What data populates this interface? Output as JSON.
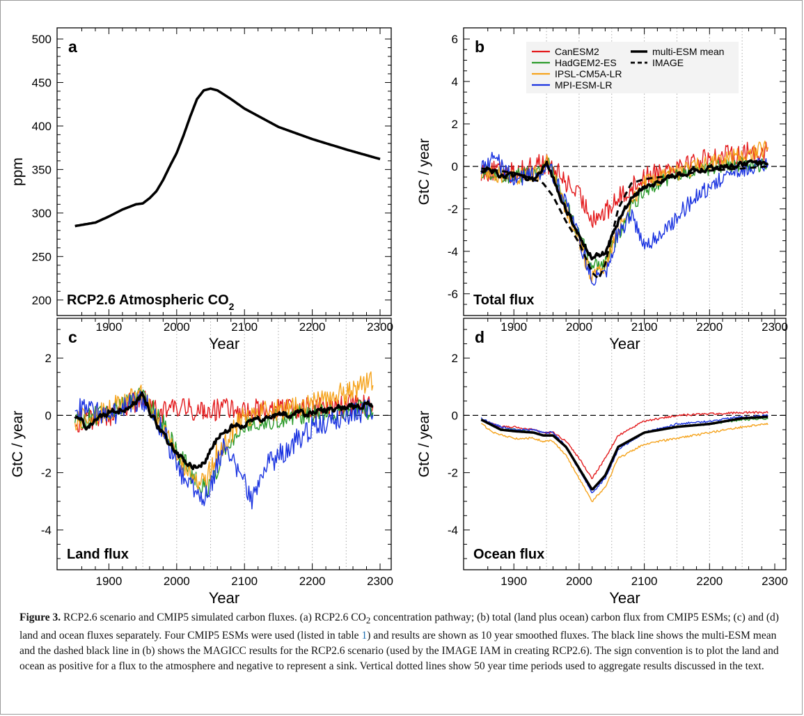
{
  "colors": {
    "CanESM2": "#e31a1c",
    "HadGEM2-ES": "#2a9a2a",
    "IPSL-CM5A-LR": "#f5a31c",
    "MPI-ESM-LR": "#1a33e0",
    "mean": "#000000",
    "vgrid": "#aaaaaa"
  },
  "legend": {
    "entries": [
      "CanESM2",
      "HadGEM2-ES",
      "IPSL-CM5A-LR",
      "MPI-ESM-LR"
    ],
    "mean_label": "multi-ESM mean",
    "image_label": "IMAGE"
  },
  "caption": {
    "label": "Figure 3.",
    "t1": " RCP2.6 scenario and CMIP5 simulated carbon fluxes. (a) RCP2.6 CO",
    "sub": "2",
    "t2": " concentration pathway; (b) total (land plus ocean) carbon flux from CMIP5 ESMs; (c) and (d) land and ocean fluxes separately. Four CMIP5 ESMs were used (listed in table ",
    "table_ref": "1",
    "t3": ") and results are shown as 10 year smoothed fluxes. The black line shows the multi-ESM mean and the dashed black line in (b) shows the MAGICC results for the RCP2.6 scenario (used by the IMAGE IAM in creating RCP2.6). The sign convention is to plot the land and ocean as positive for a flux to the atmosphere and negative to represent a sink. Vertical dotted lines show 50 year time periods used to aggregate results discussed in the text."
  },
  "chart_data": [
    {
      "panel": "a",
      "type": "line",
      "title": "RCP2.6 Atmospheric CO₂",
      "xlabel": "Year",
      "ylabel": "ppm",
      "xlim": [
        1840,
        2300
      ],
      "ylim": [
        195,
        500
      ],
      "xticks": [
        1900,
        2000,
        2100,
        2200,
        2300
      ],
      "yticks": [
        200,
        250,
        300,
        350,
        400,
        450,
        500
      ],
      "grid": false,
      "series": [
        {
          "name": "RCP2.6 CO₂",
          "style": "mean",
          "x": [
            1850,
            1880,
            1900,
            1920,
            1940,
            1950,
            1960,
            1970,
            1980,
            1990,
            2000,
            2010,
            2020,
            2030,
            2040,
            2050,
            2060,
            2080,
            2100,
            2150,
            2200,
            2250,
            2300
          ],
          "y": [
            285,
            289,
            296,
            304,
            310,
            311,
            317,
            325,
            338,
            354,
            369,
            389,
            411,
            431,
            441,
            443,
            441,
            431,
            420,
            399,
            385,
            373,
            362
          ]
        }
      ]
    },
    {
      "panel": "b",
      "type": "line",
      "title": "Total flux",
      "xlabel": "Year",
      "ylabel": "GtC / year",
      "xlim": [
        1840,
        2300
      ],
      "ylim": [
        -6.5,
        6
      ],
      "xticks": [
        1900,
        2000,
        2100,
        2200,
        2300
      ],
      "yticks": [
        -6,
        -4,
        -2,
        0,
        2,
        4,
        6
      ],
      "vgrid": [
        1950,
        2000,
        2050,
        2100,
        2150,
        2200,
        2250
      ],
      "zero_line": true,
      "legend": "top",
      "series": [
        {
          "name": "CanESM2",
          "noise": 0.55,
          "x": [
            1850,
            1900,
            1940,
            1950,
            1970,
            2000,
            2020,
            2040,
            2060,
            2100,
            2150,
            2200,
            2250,
            2290
          ],
          "y": [
            -0.2,
            -0.3,
            0.2,
            0.1,
            -0.4,
            -1.4,
            -2.4,
            -2.2,
            -1.5,
            -0.5,
            0.1,
            0.4,
            0.6,
            0.8
          ]
        },
        {
          "name": "HadGEM2-ES",
          "noise": 0.4,
          "x": [
            1850,
            1900,
            1940,
            1950,
            1970,
            2000,
            2020,
            2040,
            2060,
            2080,
            2100,
            2150,
            2200,
            2250,
            2290
          ],
          "y": [
            -0.2,
            -0.5,
            -0.2,
            0.3,
            -1.0,
            -3.3,
            -4.6,
            -4.5,
            -3.2,
            -2.0,
            -1.1,
            -0.4,
            -0.1,
            0.1,
            0.1
          ]
        },
        {
          "name": "IPSL-CM5A-LR",
          "noise": 0.45,
          "x": [
            1850,
            1900,
            1940,
            1950,
            1970,
            2000,
            2020,
            2040,
            2060,
            2080,
            2100,
            2150,
            2200,
            2250,
            2290
          ],
          "y": [
            -0.2,
            -0.5,
            -0.3,
            0.2,
            -1.2,
            -3.6,
            -5.2,
            -4.7,
            -3.0,
            -1.6,
            -0.8,
            -0.3,
            0.2,
            0.5,
            0.9
          ]
        },
        {
          "name": "MPI-ESM-LR",
          "noise": 0.45,
          "x": [
            1850,
            1870,
            1900,
            1940,
            1950,
            1970,
            2000,
            2020,
            2040,
            2060,
            2080,
            2100,
            2130,
            2160,
            2200,
            2250,
            2290
          ],
          "y": [
            0.0,
            0.4,
            -0.6,
            -0.3,
            0.2,
            -1.0,
            -3.4,
            -5.3,
            -5.0,
            -3.1,
            -2.3,
            -3.8,
            -3.1,
            -2.0,
            -0.9,
            -0.2,
            0.1
          ]
        },
        {
          "name": "multi-ESM mean",
          "style": "mean",
          "noise": 0.22,
          "x": [
            1850,
            1880,
            1900,
            1930,
            1950,
            1970,
            2000,
            2020,
            2040,
            2060,
            2080,
            2100,
            2150,
            2200,
            2250,
            2290
          ],
          "y": [
            -0.1,
            -0.4,
            -0.5,
            -0.6,
            0.2,
            -1.3,
            -3.3,
            -4.3,
            -4.1,
            -2.6,
            -1.5,
            -1.0,
            -0.4,
            -0.1,
            0.1,
            0.2
          ]
        },
        {
          "name": "IMAGE",
          "style": "dashed",
          "x": [
            1850,
            1900,
            1930,
            1945,
            1960,
            1980,
            2000,
            2020,
            2030,
            2040,
            2060,
            2080,
            2100,
            2150,
            2200,
            2250,
            2290
          ],
          "y": [
            -0.1,
            -0.3,
            -0.6,
            -0.8,
            -1.4,
            -2.6,
            -3.6,
            -5.0,
            -5.3,
            -4.6,
            -2.0,
            -0.8,
            -0.6,
            -0.4,
            -0.2,
            -0.1,
            0.0
          ]
        }
      ]
    },
    {
      "panel": "c",
      "type": "line",
      "title": "Land flux",
      "xlabel": "Year",
      "ylabel": "GtC / year",
      "xlim": [
        1840,
        2300
      ],
      "ylim": [
        -5,
        3
      ],
      "xticks": [
        1900,
        2000,
        2100,
        2200,
        2300
      ],
      "yticks": [
        -4,
        -2,
        0,
        2
      ],
      "vgrid": [
        1950,
        2000,
        2050,
        2100,
        2150,
        2200,
        2250
      ],
      "zero_line": true,
      "series": [
        {
          "name": "CanESM2",
          "noise": 0.45,
          "x": [
            1850,
            1900,
            1940,
            1950,
            1970,
            2000,
            2040,
            2100,
            2150,
            2200,
            2250,
            2290
          ],
          "y": [
            -0.3,
            0.0,
            0.5,
            0.6,
            0.1,
            0.2,
            0.2,
            0.2,
            0.2,
            0.3,
            0.3,
            0.4
          ]
        },
        {
          "name": "HadGEM2-ES",
          "noise": 0.4,
          "x": [
            1850,
            1900,
            1950,
            1980,
            2000,
            2030,
            2045,
            2060,
            2080,
            2100,
            2150,
            2200,
            2250,
            2290
          ],
          "y": [
            -0.2,
            0.1,
            0.7,
            -0.3,
            -1.2,
            -2.4,
            -2.6,
            -1.8,
            -0.8,
            -0.3,
            -0.1,
            0.1,
            0.2,
            0.2
          ]
        },
        {
          "name": "IPSL-CM5A-LR",
          "noise": 0.45,
          "x": [
            1850,
            1900,
            1950,
            1980,
            2000,
            2030,
            2045,
            2060,
            2080,
            2100,
            2150,
            2200,
            2250,
            2290
          ],
          "y": [
            -0.2,
            0.2,
            0.7,
            -0.5,
            -1.5,
            -2.3,
            -2.2,
            -1.3,
            -0.6,
            0.0,
            0.2,
            0.4,
            0.8,
            1.2
          ]
        },
        {
          "name": "MPI-ESM-LR",
          "noise": 0.45,
          "x": [
            1850,
            1880,
            1900,
            1950,
            1980,
            2000,
            2020,
            2040,
            2050,
            2070,
            2090,
            2110,
            2130,
            2160,
            2200,
            2250,
            2290
          ],
          "y": [
            0.2,
            0.2,
            -0.1,
            0.6,
            -0.5,
            -1.8,
            -2.4,
            -3.0,
            -2.5,
            -1.0,
            -1.8,
            -3.0,
            -1.8,
            -1.2,
            -0.4,
            0.0,
            0.2
          ]
        },
        {
          "name": "multi-ESM mean",
          "style": "mean",
          "noise": 0.2,
          "x": [
            1850,
            1870,
            1900,
            1930,
            1950,
            1970,
            1990,
            2010,
            2030,
            2045,
            2060,
            2080,
            2100,
            2150,
            2200,
            2250,
            2290
          ],
          "y": [
            -0.1,
            -0.4,
            0.1,
            0.3,
            0.7,
            -0.3,
            -1.0,
            -1.6,
            -1.8,
            -1.5,
            -0.8,
            -0.4,
            -0.3,
            0.0,
            0.1,
            0.3,
            0.4
          ]
        }
      ]
    },
    {
      "panel": "d",
      "type": "line",
      "title": "Ocean flux",
      "xlabel": "Year",
      "ylabel": "GtC / year",
      "xlim": [
        1840,
        2300
      ],
      "ylim": [
        -5,
        3
      ],
      "xticks": [
        1900,
        2000,
        2100,
        2200,
        2300
      ],
      "yticks": [
        -4,
        -2,
        0,
        2
      ],
      "vgrid": [
        1950,
        2000,
        2050,
        2100,
        2150,
        2200,
        2250
      ],
      "zero_line": true,
      "series": [
        {
          "name": "CanESM2",
          "noise": 0.04,
          "x": [
            1850,
            1880,
            1900,
            1930,
            1945,
            1960,
            1980,
            2000,
            2020,
            2040,
            2060,
            2100,
            2150,
            2200,
            2250,
            2290
          ],
          "y": [
            -0.15,
            -0.4,
            -0.4,
            -0.5,
            -0.6,
            -0.6,
            -0.9,
            -1.5,
            -2.2,
            -1.5,
            -0.7,
            -0.2,
            0.0,
            0.05,
            0.1,
            0.1
          ]
        },
        {
          "name": "HadGEM2-ES",
          "noise": 0.04,
          "x": [
            1850,
            1880,
            1900,
            1930,
            1945,
            1960,
            1980,
            2000,
            2020,
            2040,
            2060,
            2100,
            2150,
            2200,
            2250,
            2290
          ],
          "y": [
            -0.15,
            -0.5,
            -0.5,
            -0.6,
            -0.7,
            -0.7,
            -1.1,
            -1.8,
            -2.6,
            -2.1,
            -1.1,
            -0.6,
            -0.4,
            -0.3,
            -0.15,
            -0.1
          ]
        },
        {
          "name": "IPSL-CM5A-LR",
          "noise": 0.04,
          "x": [
            1850,
            1870,
            1900,
            1930,
            1945,
            1960,
            1980,
            2000,
            2020,
            2040,
            2060,
            2100,
            2150,
            2200,
            2250,
            2290
          ],
          "y": [
            -0.3,
            -0.6,
            -0.8,
            -0.8,
            -0.9,
            -0.9,
            -1.4,
            -2.2,
            -3.0,
            -2.5,
            -1.5,
            -1.0,
            -0.8,
            -0.6,
            -0.4,
            -0.3
          ]
        },
        {
          "name": "MPI-ESM-LR",
          "noise": 0.04,
          "x": [
            1850,
            1880,
            1900,
            1930,
            1945,
            1960,
            1980,
            2000,
            2020,
            2040,
            2060,
            2100,
            2150,
            2200,
            2250,
            2290
          ],
          "y": [
            -0.1,
            -0.4,
            -0.5,
            -0.5,
            -0.6,
            -0.6,
            -1.1,
            -1.9,
            -2.7,
            -2.2,
            -1.2,
            -0.6,
            -0.3,
            -0.2,
            -0.05,
            0.0
          ]
        },
        {
          "name": "multi-ESM mean",
          "style": "mean",
          "noise": 0.0,
          "x": [
            1850,
            1880,
            1900,
            1930,
            1945,
            1960,
            1980,
            2000,
            2020,
            2040,
            2060,
            2100,
            2150,
            2200,
            2250,
            2290
          ],
          "y": [
            -0.15,
            -0.5,
            -0.55,
            -0.6,
            -0.7,
            -0.7,
            -1.1,
            -1.85,
            -2.6,
            -2.1,
            -1.1,
            -0.6,
            -0.4,
            -0.3,
            -0.1,
            -0.05
          ]
        }
      ]
    }
  ]
}
